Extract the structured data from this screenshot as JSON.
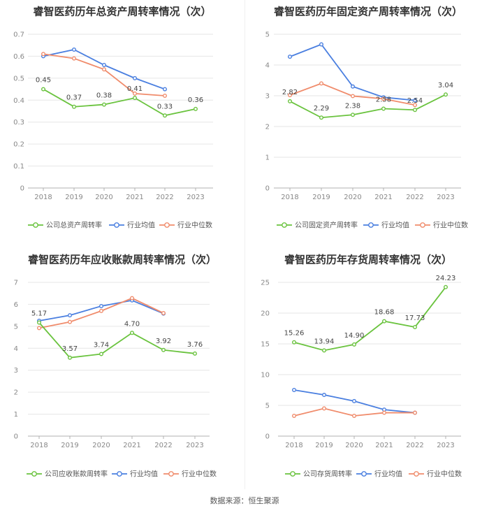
{
  "colors": {
    "company": "#6ac33e",
    "industry_avg": "#4a7fe0",
    "industry_median": "#f08c6c"
  },
  "source": "数据来源：恒生聚源",
  "chart_data": [
    {
      "type": "line",
      "title": "睿智医药历年总资产周转率情况（次）",
      "categories": [
        "2018",
        "2019",
        "2020",
        "2021",
        "2022",
        "2023"
      ],
      "ylim": [
        0,
        0.7
      ],
      "yticks": [
        "0",
        "0.1",
        "0.2",
        "0.3",
        "0.4",
        "0.5",
        "0.6",
        "0.7"
      ],
      "grid": true,
      "legend_position": "bottom",
      "series": [
        {
          "name": "公司总资产周转率",
          "values": [
            0.45,
            0.37,
            0.38,
            0.41,
            0.33,
            0.36
          ],
          "labels": [
            "0.45",
            "0.37",
            "0.38",
            "0.41",
            "0.33",
            "0.36"
          ]
        },
        {
          "name": "行业均值",
          "values": [
            0.6,
            0.63,
            0.56,
            0.5,
            0.45,
            null
          ]
        },
        {
          "name": "行业中位数",
          "values": [
            0.61,
            0.59,
            0.54,
            0.43,
            0.42,
            null
          ]
        }
      ]
    },
    {
      "type": "line",
      "title": "睿智医药历年固定资产周转率情况（次）",
      "categories": [
        "2018",
        "2019",
        "2020",
        "2021",
        "2022",
        "2023"
      ],
      "ylim": [
        0,
        5
      ],
      "yticks": [
        "0",
        "1",
        "2",
        "3",
        "4",
        "5"
      ],
      "grid": true,
      "legend_position": "bottom",
      "series": [
        {
          "name": "公司固定资产周转率",
          "values": [
            2.82,
            2.29,
            2.38,
            2.58,
            2.54,
            3.04
          ],
          "labels": [
            "2.82",
            "2.29",
            "2.38",
            "2.58",
            "2.54",
            "3.04"
          ]
        },
        {
          "name": "行业均值",
          "values": [
            4.27,
            4.67,
            3.3,
            2.95,
            2.85,
            null
          ]
        },
        {
          "name": "行业中位数",
          "values": [
            3.02,
            3.4,
            2.99,
            2.9,
            2.7,
            null
          ]
        }
      ]
    },
    {
      "type": "line",
      "title": "睿智医药历年应收账款周转率情况（次）",
      "categories": [
        "2018",
        "2019",
        "2020",
        "2021",
        "2022",
        "2023"
      ],
      "ylim": [
        0,
        7
      ],
      "yticks": [
        "0",
        "1",
        "2",
        "3",
        "4",
        "5",
        "6",
        "7"
      ],
      "grid": true,
      "legend_position": "bottom",
      "series": [
        {
          "name": "公司应收账款周转率",
          "values": [
            5.17,
            3.57,
            3.74,
            4.7,
            3.92,
            3.76
          ],
          "labels": [
            "5.17",
            "3.57",
            "3.74",
            "4.70",
            "3.92",
            "3.76"
          ]
        },
        {
          "name": "行业均值",
          "values": [
            5.25,
            5.5,
            5.92,
            6.18,
            5.58,
            null
          ]
        },
        {
          "name": "行业中位数",
          "values": [
            4.92,
            5.2,
            5.7,
            6.28,
            5.6,
            null
          ]
        }
      ]
    },
    {
      "type": "line",
      "title": "睿智医药历年存货周转率情况（次）",
      "categories": [
        "2018",
        "2019",
        "2020",
        "2021",
        "2022",
        "2023"
      ],
      "ylim": [
        0,
        25
      ],
      "yticks": [
        "0",
        "5",
        "10",
        "15",
        "20",
        "25"
      ],
      "grid": true,
      "legend_position": "bottom",
      "series": [
        {
          "name": "公司存货周转率",
          "values": [
            15.26,
            13.94,
            14.9,
            18.68,
            17.73,
            24.23
          ],
          "labels": [
            "15.26",
            "13.94",
            "14.90",
            "18.68",
            "17.73",
            "24.23"
          ]
        },
        {
          "name": "行业均值",
          "values": [
            7.5,
            6.7,
            5.7,
            4.3,
            3.8,
            null
          ]
        },
        {
          "name": "行业中位数",
          "values": [
            3.3,
            4.5,
            3.3,
            3.8,
            3.8,
            null
          ]
        }
      ]
    }
  ]
}
